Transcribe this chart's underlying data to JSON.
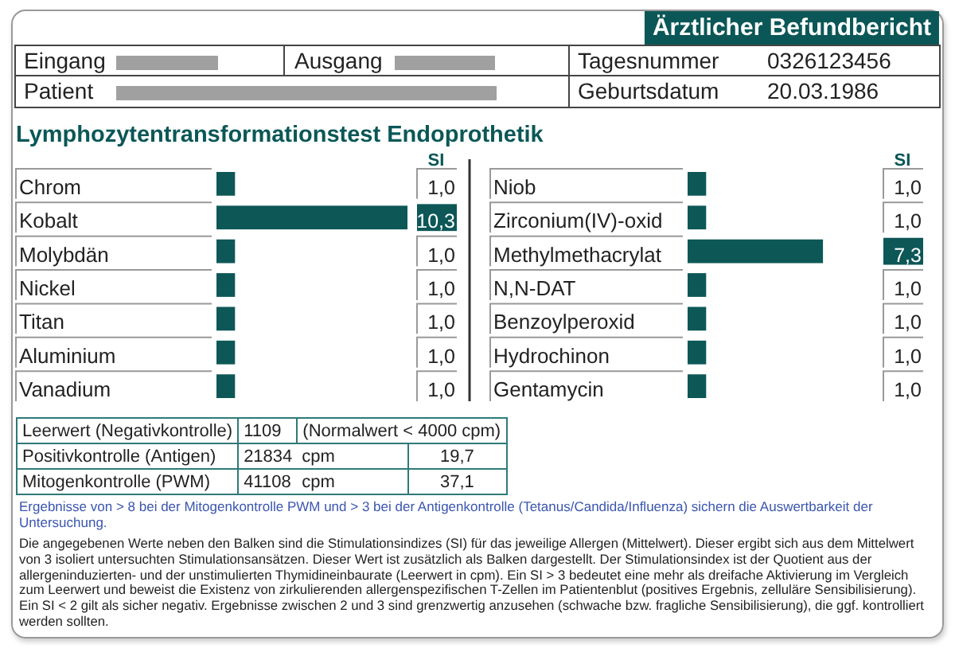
{
  "chart_data": [
    {
      "type": "other",
      "title": "Ärztlicher Befundbericht",
      "annotations": [
        "Eingang",
        "Ausgang",
        "Tagesnummer",
        "0326123456",
        "Patient",
        "Geburtsdatum",
        "20.03.1986"
      ]
    },
    {
      "type": "bar",
      "orientation": "horizontal",
      "title": "Lymphozytentransformationstest Endoprothetik",
      "xlabel": "SI",
      "color": "#0d5757",
      "categories": [
        "Chrom",
        "Kobalt",
        "Molybdän",
        "Nickel",
        "Titan",
        "Aluminium",
        "Vanadium"
      ],
      "values": [
        1.0,
        10.3,
        1.0,
        1.0,
        1.0,
        1.0,
        1.0
      ],
      "value_labels": [
        "1,0",
        "10,3",
        "1,0",
        "1,0",
        "1,0",
        "1,0",
        "1,0"
      ]
    },
    {
      "type": "bar",
      "orientation": "horizontal",
      "xlabel": "SI",
      "color": "#0d5757",
      "categories": [
        "Niob",
        "Zirconium(IV)-oxid",
        "Methylmethacrylat",
        "N,N-DAT",
        "Benzoylperoxid",
        "Hydrochinon",
        "Gentamycin"
      ],
      "values": [
        1.0,
        1.0,
        7.3,
        1.0,
        1.0,
        1.0,
        1.0
      ],
      "value_labels": [
        "1,0",
        "1,0",
        "7,3",
        "1,0",
        "1,0",
        "1,0",
        "1,0"
      ]
    },
    {
      "type": "other",
      "annotations": [
        "Leerwert (Negativkontrolle)",
        "1109",
        "(Normalwert < 4000 cpm)",
        "Positivkontrolle (Antigen)",
        "21834",
        "cpm",
        "19,7",
        "Mitogenkontrolle (PWM)",
        "41108",
        "cpm",
        "37,1",
        "Ergebnisse von > 8 bei der Mitogenkontrolle PWM und > 3 bei der Antigenkontrolle (Tetanus/Candida/Influenza) sichern die Auswertbarkeit der Untersuchung.",
        "Die angegebenen Werte neben den Balken sind die Stimulationsindizes (SI) für das jeweilige Allergen (Mittelwert). Dieser ergibt sich aus dem Mittelwert von 3 isoliert untersuchten Stimulationsansätzen. Dieser Wert ist zusätzlich als Balken dargestellt. Der Stimulationsindex ist der Quotient aus der allergeninduzierten- und der unstimulierten Thymidineinbaurate (Leerwert in cpm). Ein SI > 3 bedeutet eine mehr als dreifache Aktivierung im Vergleich zum Leerwert und beweist die Existenz von zirkulierenden allergenspezifischen T-Zellen im Patientenblut (positives Ergebnis, zelluläre Sensibilisierung). Ein SI < 2 gilt als sicher negativ. Ergebnisse zwischen 2 und 3 sind grenzwertig anzusehen (schwache bzw. fragliche Sensibilisierung), die ggf. kontrolliert werden sollten."
      ]
    }
  ]
}
